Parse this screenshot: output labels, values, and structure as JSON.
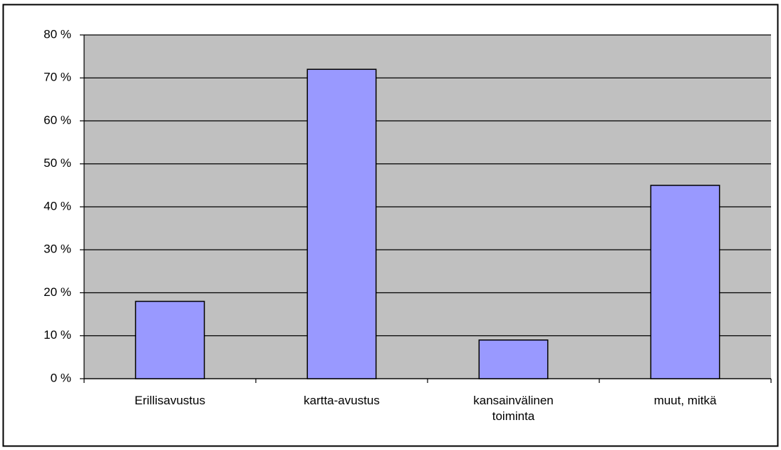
{
  "chart_data": {
    "type": "bar",
    "categories": [
      "Erillisavustus",
      "kartta-avustus",
      "kansainvälinen toiminta",
      "muut, mitkä"
    ],
    "values": [
      18,
      72,
      9,
      45
    ],
    "color": "#9999ff",
    "ylim": [
      0,
      80
    ],
    "yticks": [
      {
        "value": 0,
        "label": "0 %"
      },
      {
        "value": 10,
        "label": "10 %"
      },
      {
        "value": 20,
        "label": "20 %"
      },
      {
        "value": 30,
        "label": "30 %"
      },
      {
        "value": 40,
        "label": "40 %"
      },
      {
        "value": 50,
        "label": "50 %"
      },
      {
        "value": 60,
        "label": "60 %"
      },
      {
        "value": 70,
        "label": "70 %"
      },
      {
        "value": 80,
        "label": "80 %"
      }
    ],
    "grid": true
  }
}
